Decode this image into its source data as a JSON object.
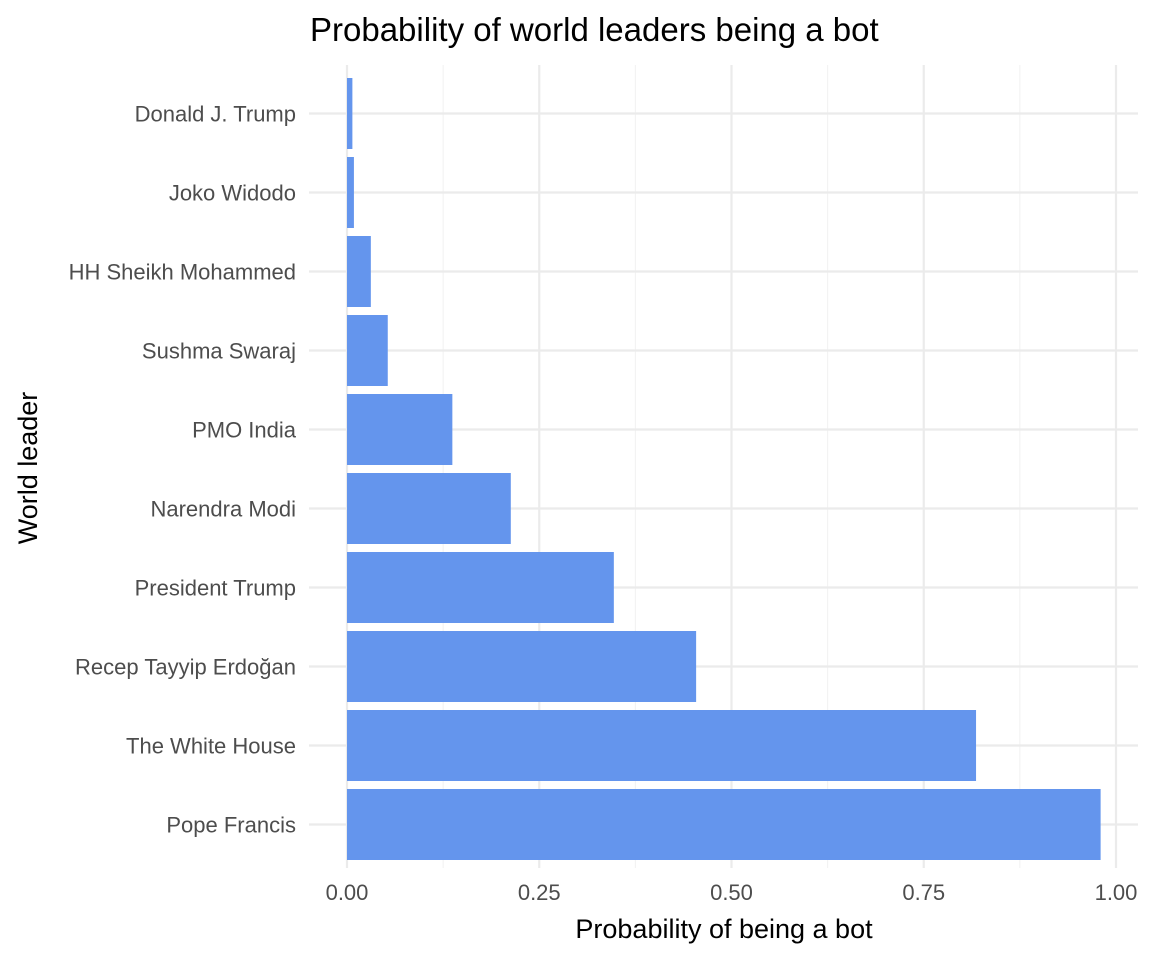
{
  "chart_data": {
    "type": "bar",
    "orientation": "horizontal",
    "title": "Probability of world leaders being a bot",
    "xlabel": "Probability of being a bot",
    "ylabel": "World leader",
    "categories": [
      "Donald J. Trump",
      "Joko Widodo",
      "HH Sheikh Mohammed",
      "Sushma Swaraj",
      "PMO India",
      "Narendra Modi",
      "President Trump",
      "Recep Tayyip Erdoğan",
      "The White House",
      "Pope Francis"
    ],
    "values": [
      0.007,
      0.009,
      0.031,
      0.053,
      0.137,
      0.213,
      0.347,
      0.454,
      0.818,
      0.98
    ],
    "xlim": [
      0,
      1.0
    ],
    "x_ticks": [
      0.0,
      0.25,
      0.5,
      0.75,
      1.0
    ],
    "x_tick_labels": [
      "0.00",
      "0.25",
      "0.50",
      "0.75",
      "1.00"
    ],
    "bar_color": "#6495ed",
    "grid": true,
    "legend": "none"
  }
}
